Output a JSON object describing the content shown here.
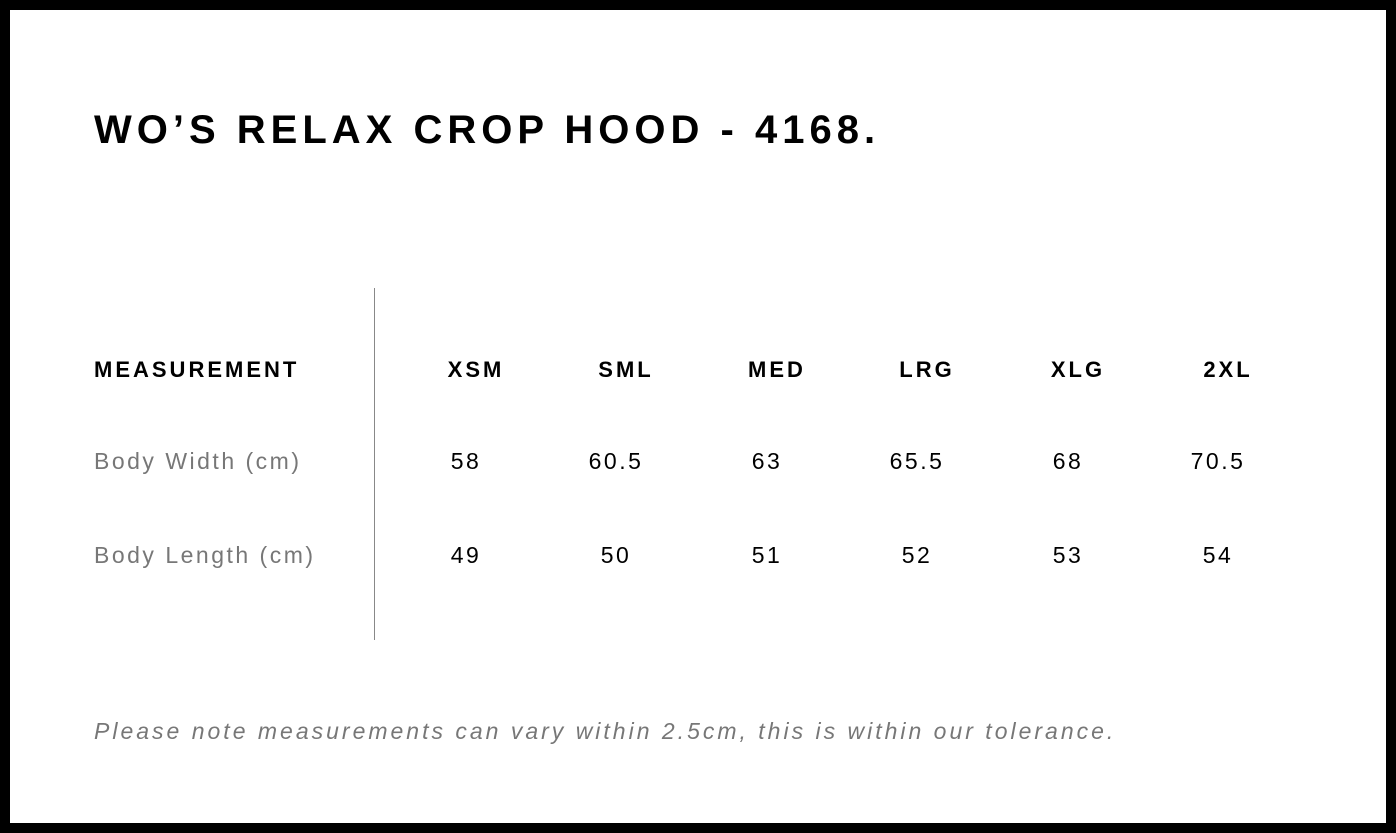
{
  "title": "WO’S RELAX CROP HOOD - 4168.",
  "table": {
    "header": "MEASUREMENT",
    "sizes": [
      "XSM",
      "SML",
      "MED",
      "LRG",
      "XLG",
      "2XL"
    ],
    "rows": [
      {
        "label": "Body Width (cm)",
        "values": [
          "58",
          "60.5",
          "63",
          "65.5",
          "68",
          "70.5"
        ]
      },
      {
        "label": "Body Length (cm)",
        "values": [
          "49",
          "50",
          "51",
          "52",
          "53",
          "54"
        ]
      }
    ]
  },
  "note": "Please note measurements can vary within 2.5cm, this is within our tolerance."
}
